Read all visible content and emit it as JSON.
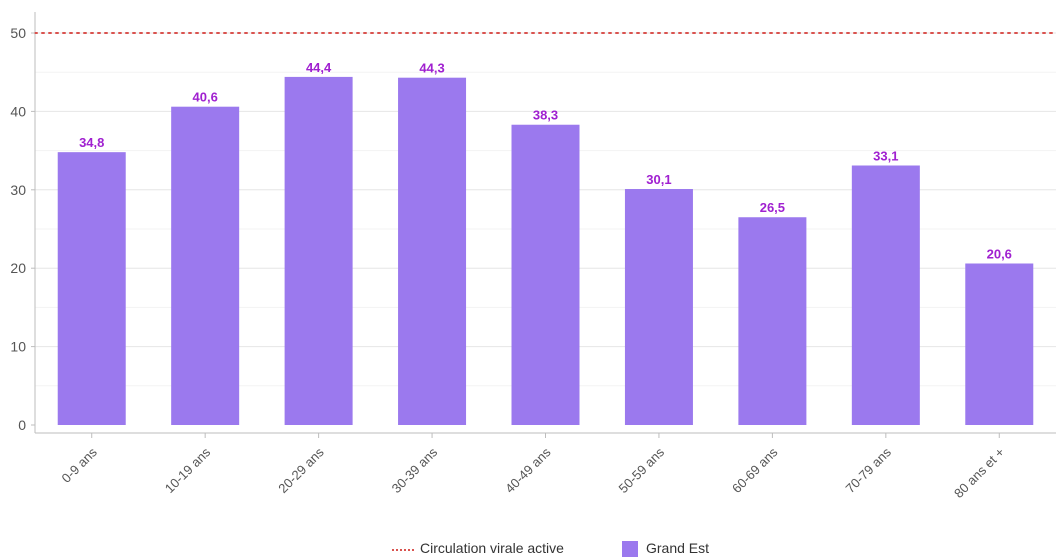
{
  "chart_data": {
    "type": "bar",
    "categories": [
      "0-9 ans",
      "10-19 ans",
      "20-29 ans",
      "30-39 ans",
      "40-49 ans",
      "50-59 ans",
      "60-69 ans",
      "70-79 ans",
      "80 ans et +"
    ],
    "series": [
      {
        "name": "Grand Est",
        "values": [
          34.8,
          40.6,
          44.4,
          44.3,
          38.3,
          30.1,
          26.5,
          33.1,
          20.6
        ],
        "data_labels": [
          "34,8",
          "40,6",
          "44,4",
          "44,3",
          "38,3",
          "30,1",
          "26,5",
          "33,1",
          "20,6"
        ],
        "color": "#9b79ee"
      }
    ],
    "reference_line": {
      "name": "Circulation virale active",
      "value": 50,
      "color": "#d9534f",
      "style": "dotted"
    },
    "yticks": [
      0,
      10,
      20,
      30,
      40,
      50
    ],
    "ylim": [
      0,
      50
    ],
    "grid": true,
    "legend_position": "bottom",
    "label_color": "#a020d0"
  }
}
